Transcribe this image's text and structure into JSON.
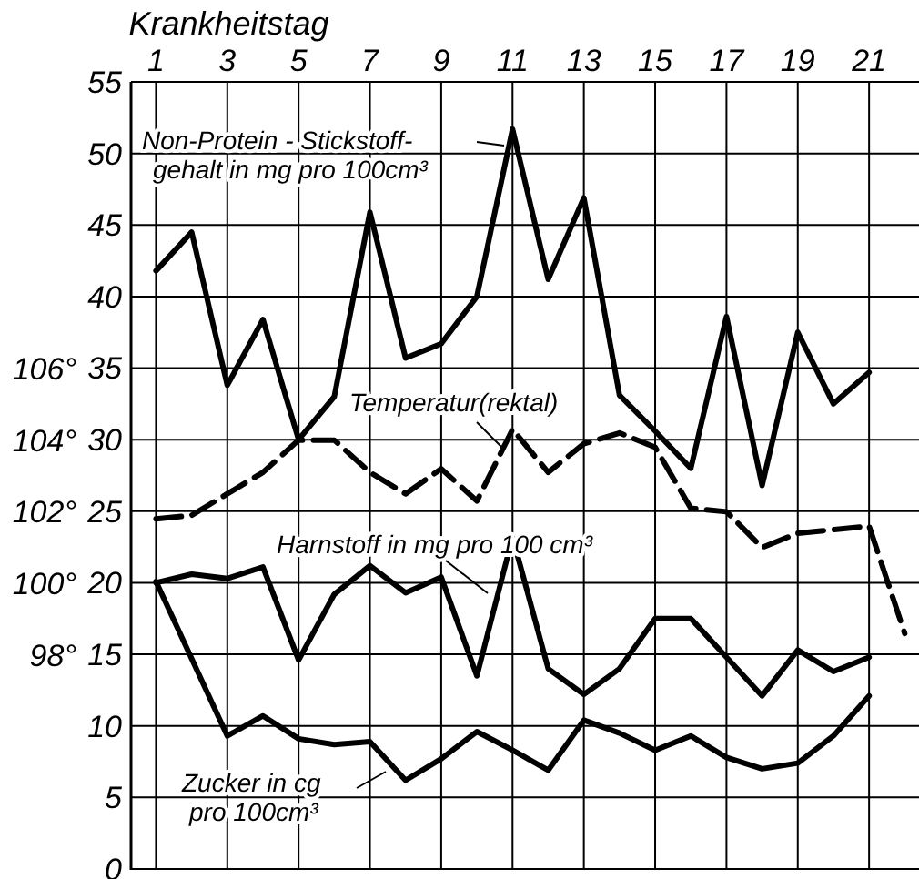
{
  "chart_data": {
    "type": "line",
    "xlabel": "Krankheitstag",
    "x": [
      1,
      2,
      3,
      4,
      5,
      6,
      7,
      8,
      9,
      10,
      11,
      12,
      13,
      14,
      15,
      16,
      17,
      18,
      19,
      20,
      21
    ],
    "xlim": [
      0.3,
      22.4
    ],
    "xticks": [
      1,
      3,
      5,
      7,
      9,
      11,
      13,
      15,
      17,
      19,
      21
    ],
    "ylim": [
      0,
      55
    ],
    "yticks": [
      0,
      5,
      10,
      15,
      20,
      25,
      30,
      35,
      40,
      45,
      50,
      55
    ],
    "y2lim": [
      92,
      114
    ],
    "y2ticks": [
      {
        "value": 98,
        "label": "98°"
      },
      {
        "value": 100,
        "label": "100°"
      },
      {
        "value": 102,
        "label": "102°"
      },
      {
        "value": 104,
        "label": "104°"
      },
      {
        "value": 106,
        "label": "106°"
      }
    ],
    "grid": true,
    "legend": "bottom left",
    "marker": "none",
    "series": [
      {
        "name": "Non-Protein - Stickstoff-\ngehalt in mg pro 100cm³",
        "color": "#000000",
        "line_style": "solid",
        "values": [
          41.8,
          44.5,
          33.8,
          38.4,
          30.0,
          33.0,
          45.9,
          35.7,
          36.7,
          40.0,
          51.7,
          41.2,
          46.9,
          33.1,
          30.6,
          28.0,
          38.6,
          26.8,
          37.5,
          32.5,
          34.7
        ]
      },
      {
        "name": "Temperatur(rektal)",
        "color": "#000000",
        "line_style": "dashed",
        "axis": "y2",
        "x": [
          1,
          2,
          3,
          4,
          5,
          6,
          7,
          8,
          9,
          10,
          11,
          12,
          13,
          14,
          15,
          16,
          17,
          18,
          19,
          20,
          21,
          22
        ],
        "values": [
          101.8,
          101.9,
          102.5,
          103.1,
          104.0,
          104.0,
          103.1,
          102.5,
          103.2,
          102.3,
          104.3,
          103.1,
          103.9,
          104.2,
          103.8,
          102.1,
          102.0,
          101.0,
          101.4,
          101.5,
          101.6,
          98.6
        ]
      },
      {
        "name": "Harnstoff in mg pro 100 cm³",
        "color": "#000000",
        "line_style": "solid",
        "values": [
          20.0,
          20.6,
          20.3,
          21.1,
          14.6,
          19.2,
          21.2,
          19.3,
          20.4,
          13.5,
          23.2,
          14.0,
          12.2,
          14.0,
          17.5,
          17.5,
          14.8,
          12.1,
          15.3,
          13.8,
          14.8
        ]
      },
      {
        "name": "Zucker in cg\npro 100cm³",
        "color": "#000000",
        "line_style": "solid",
        "values": [
          20.1,
          14.7,
          9.3,
          10.7,
          9.1,
          8.7,
          8.9,
          6.2,
          7.7,
          9.6,
          8.3,
          6.9,
          10.4,
          9.5,
          8.3,
          9.3,
          7.8,
          7.0,
          7.4,
          9.3,
          12.1
        ]
      }
    ]
  }
}
